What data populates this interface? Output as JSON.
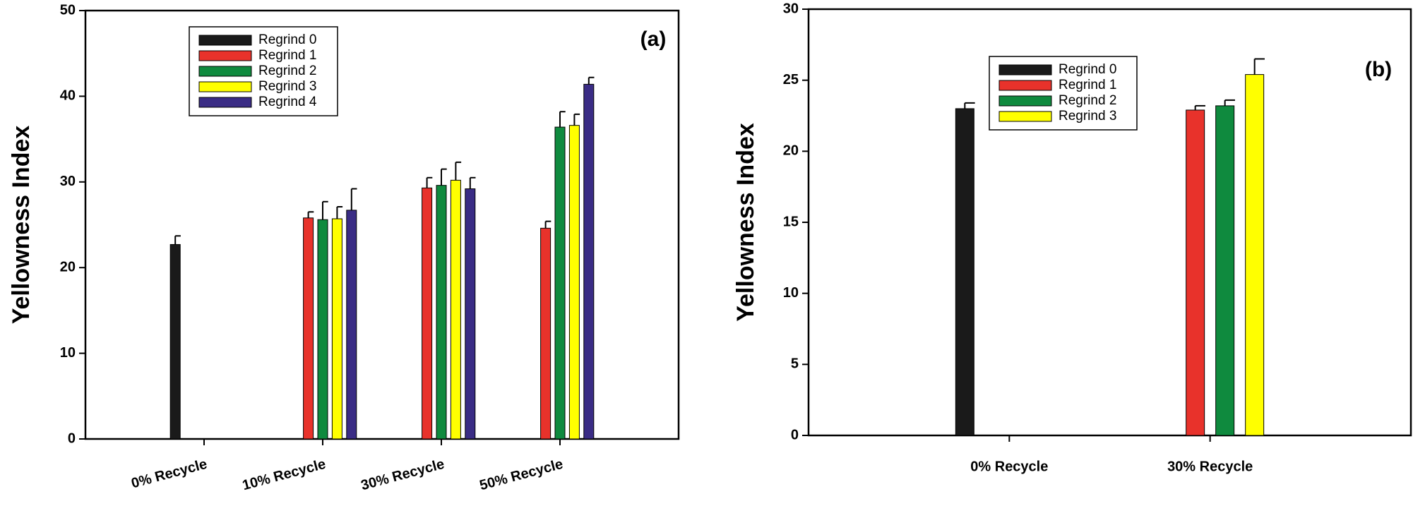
{
  "chart_data": [
    {
      "type": "bar",
      "annotation": "(a)",
      "y_label": "Yellowness Index",
      "categories": [
        "0% Recycle",
        "10% Recycle",
        "30% Recycle",
        "50% Recycle"
      ],
      "ylim": [
        0,
        50
      ],
      "yticks": [
        0,
        10,
        20,
        30,
        40,
        50
      ],
      "series": [
        {
          "name": "Regrind 0",
          "color": "#1a1a1a",
          "values": [
            22.7,
            null,
            null,
            null
          ],
          "errors": [
            1.0,
            null,
            null,
            null
          ]
        },
        {
          "name": "Regrind 1",
          "color": "#e8322b",
          "values": [
            null,
            25.8,
            29.3,
            24.6
          ],
          "errors": [
            null,
            0.7,
            1.2,
            0.8
          ]
        },
        {
          "name": "Regrind 2",
          "color": "#0f8a3e",
          "values": [
            null,
            25.6,
            29.6,
            36.4
          ],
          "errors": [
            null,
            2.1,
            1.9,
            1.8
          ]
        },
        {
          "name": "Regrind 3",
          "color": "#ffff00",
          "values": [
            null,
            25.7,
            30.2,
            36.6
          ],
          "errors": [
            null,
            1.4,
            2.1,
            1.3
          ]
        },
        {
          "name": "Regrind 4",
          "color": "#3a2c85",
          "values": [
            null,
            26.7,
            29.2,
            41.4
          ],
          "errors": [
            null,
            2.5,
            1.3,
            0.8
          ]
        }
      ]
    },
    {
      "type": "bar",
      "annotation": "(b)",
      "y_label": "Yellowness Index",
      "categories": [
        "0% Recycle",
        "30% Recycle"
      ],
      "ylim": [
        0,
        30
      ],
      "yticks": [
        0,
        5,
        10,
        15,
        20,
        25,
        30
      ],
      "series": [
        {
          "name": "Regrind 0",
          "color": "#1a1a1a",
          "values": [
            23.0,
            null
          ],
          "errors": [
            0.4,
            null
          ]
        },
        {
          "name": "Regrind 1",
          "color": "#e8322b",
          "values": [
            null,
            22.9
          ],
          "errors": [
            null,
            0.3
          ]
        },
        {
          "name": "Regrind 2",
          "color": "#0f8a3e",
          "values": [
            null,
            23.2
          ],
          "errors": [
            null,
            0.4
          ]
        },
        {
          "name": "Regrind 3",
          "color": "#ffff00",
          "values": [
            null,
            25.4
          ],
          "errors": [
            null,
            1.1
          ]
        }
      ]
    }
  ]
}
